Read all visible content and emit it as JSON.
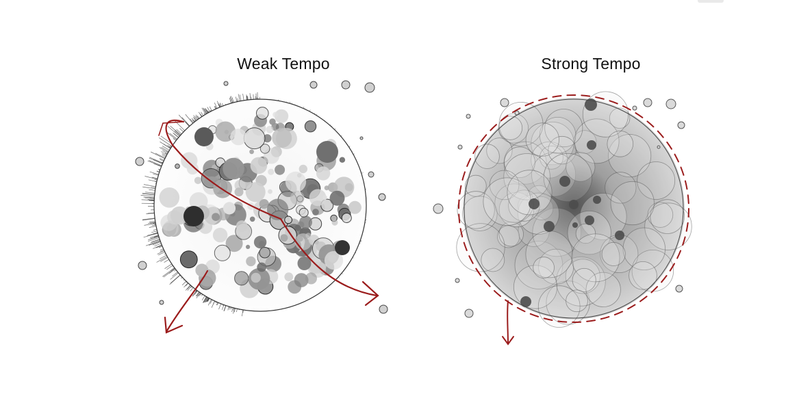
{
  "panels": [
    {
      "title": "Weak Tempo"
    },
    {
      "title": "Strong Tempo"
    }
  ],
  "colors": {
    "arrow": "#9b1c1c",
    "ink": "#222222",
    "grey_dark": "#555555",
    "grey_mid": "#8a8a8a",
    "grey_light": "#c8c8c8"
  }
}
